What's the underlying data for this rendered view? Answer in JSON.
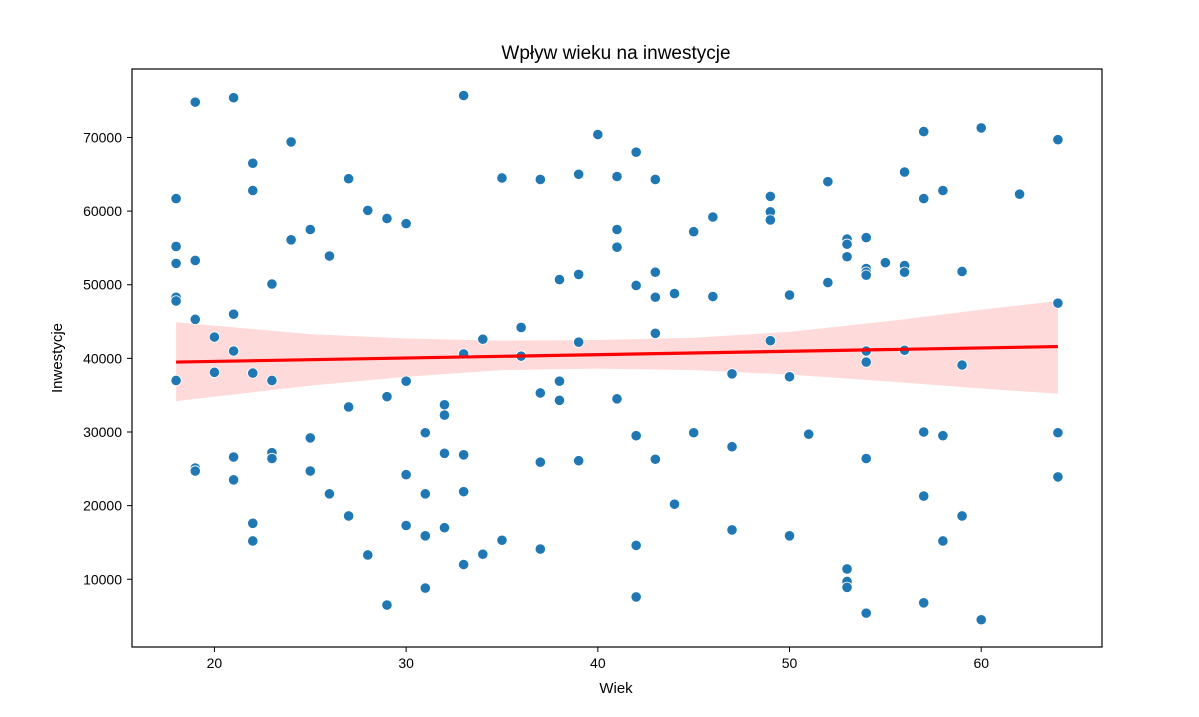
{
  "chart_data": {
    "type": "scatter",
    "title": "Wpływ wieku na inwestycje",
    "xlabel": "Wiek",
    "ylabel": "Inwestycje",
    "xlim": [
      15.7,
      66.3
    ],
    "ylim": [
      800,
      79300
    ],
    "x_ticks": [
      20,
      30,
      40,
      50,
      60
    ],
    "y_ticks": [
      10000,
      20000,
      30000,
      40000,
      50000,
      60000,
      70000
    ],
    "grid": false,
    "colors": {
      "points": "#1f77b4",
      "regression_line": "#ff0000",
      "confidence_band": "#ffd6d6"
    },
    "points": [
      [
        18,
        61700
      ],
      [
        18,
        55200
      ],
      [
        18,
        52900
      ],
      [
        18,
        48300
      ],
      [
        18,
        47800
      ],
      [
        18,
        37000
      ],
      [
        19,
        74800
      ],
      [
        19,
        53300
      ],
      [
        19,
        45300
      ],
      [
        19,
        25100
      ],
      [
        19,
        24700
      ],
      [
        20,
        42900
      ],
      [
        20,
        38100
      ],
      [
        21,
        75400
      ],
      [
        21,
        46000
      ],
      [
        21,
        41000
      ],
      [
        21,
        26600
      ],
      [
        21,
        23500
      ],
      [
        22,
        66500
      ],
      [
        22,
        62800
      ],
      [
        22,
        38000
      ],
      [
        22,
        17600
      ],
      [
        22,
        15200
      ],
      [
        23,
        50100
      ],
      [
        23,
        37000
      ],
      [
        23,
        27200
      ],
      [
        23,
        26400
      ],
      [
        24,
        69400
      ],
      [
        24,
        56100
      ],
      [
        25,
        57500
      ],
      [
        25,
        29200
      ],
      [
        25,
        24700
      ],
      [
        26,
        53900
      ],
      [
        26,
        21600
      ],
      [
        27,
        64400
      ],
      [
        27,
        33400
      ],
      [
        27,
        18600
      ],
      [
        28,
        60100
      ],
      [
        28,
        13300
      ],
      [
        29,
        59000
      ],
      [
        29,
        34800
      ],
      [
        29,
        6500
      ],
      [
        30,
        58300
      ],
      [
        30,
        36900
      ],
      [
        30,
        24200
      ],
      [
        30,
        17300
      ],
      [
        31,
        29900
      ],
      [
        31,
        21600
      ],
      [
        31,
        15900
      ],
      [
        31,
        8800
      ],
      [
        32,
        33700
      ],
      [
        32,
        32300
      ],
      [
        32,
        27100
      ],
      [
        32,
        17000
      ],
      [
        33,
        75700
      ],
      [
        33,
        40600
      ],
      [
        33,
        26900
      ],
      [
        33,
        21900
      ],
      [
        33,
        12000
      ],
      [
        34,
        42600
      ],
      [
        34,
        13400
      ],
      [
        35,
        64500
      ],
      [
        35,
        15300
      ],
      [
        36,
        44200
      ],
      [
        36,
        40300
      ],
      [
        37,
        64300
      ],
      [
        37,
        35300
      ],
      [
        37,
        25900
      ],
      [
        37,
        14100
      ],
      [
        38,
        50700
      ],
      [
        38,
        36900
      ],
      [
        38,
        34300
      ],
      [
        39,
        65000
      ],
      [
        39,
        51400
      ],
      [
        39,
        42200
      ],
      [
        39,
        26100
      ],
      [
        40,
        70400
      ],
      [
        41,
        64700
      ],
      [
        41,
        57500
      ],
      [
        41,
        55100
      ],
      [
        41,
        34500
      ],
      [
        42,
        68000
      ],
      [
        42,
        49900
      ],
      [
        42,
        29500
      ],
      [
        42,
        14600
      ],
      [
        42,
        7600
      ],
      [
        43,
        64300
      ],
      [
        43,
        51700
      ],
      [
        43,
        48300
      ],
      [
        43,
        43400
      ],
      [
        43,
        26300
      ],
      [
        44,
        48800
      ],
      [
        44,
        20200
      ],
      [
        45,
        57200
      ],
      [
        45,
        29900
      ],
      [
        46,
        59200
      ],
      [
        46,
        48400
      ],
      [
        47,
        37900
      ],
      [
        47,
        28000
      ],
      [
        47,
        16700
      ],
      [
        49,
        62000
      ],
      [
        49,
        59900
      ],
      [
        49,
        58800
      ],
      [
        49,
        42400
      ],
      [
        50,
        48600
      ],
      [
        50,
        37500
      ],
      [
        50,
        15900
      ],
      [
        51,
        29700
      ],
      [
        52,
        64000
      ],
      [
        52,
        50300
      ],
      [
        53,
        56200
      ],
      [
        53,
        55500
      ],
      [
        53,
        53800
      ],
      [
        53,
        11400
      ],
      [
        53,
        9700
      ],
      [
        53,
        8900
      ],
      [
        54,
        56400
      ],
      [
        54,
        52200
      ],
      [
        54,
        51700
      ],
      [
        54,
        51300
      ],
      [
        54,
        41000
      ],
      [
        54,
        39500
      ],
      [
        54,
        26400
      ],
      [
        54,
        5400
      ],
      [
        55,
        53000
      ],
      [
        56,
        65300
      ],
      [
        56,
        52600
      ],
      [
        56,
        51700
      ],
      [
        56,
        41100
      ],
      [
        57,
        70800
      ],
      [
        57,
        61700
      ],
      [
        57,
        30000
      ],
      [
        57,
        21300
      ],
      [
        57,
        6800
      ],
      [
        58,
        62800
      ],
      [
        58,
        29500
      ],
      [
        58,
        15200
      ],
      [
        59,
        51800
      ],
      [
        59,
        39100
      ],
      [
        59,
        18600
      ],
      [
        60,
        71300
      ],
      [
        60,
        4500
      ],
      [
        62,
        62300
      ],
      [
        64,
        69700
      ],
      [
        64,
        47500
      ],
      [
        64,
        29900
      ],
      [
        64,
        23900
      ]
    ],
    "regression": {
      "x": [
        18,
        64
      ],
      "y": [
        39500,
        41600
      ],
      "ci_x": [
        18,
        25,
        30,
        35,
        40,
        45,
        50,
        55,
        60,
        64
      ],
      "ci_lower": [
        34200,
        36300,
        37500,
        38400,
        38600,
        38400,
        37800,
        36900,
        35900,
        35200
      ],
      "ci_upper": [
        44900,
        43300,
        42700,
        42400,
        42500,
        42800,
        43600,
        45000,
        46600,
        47800
      ]
    }
  }
}
